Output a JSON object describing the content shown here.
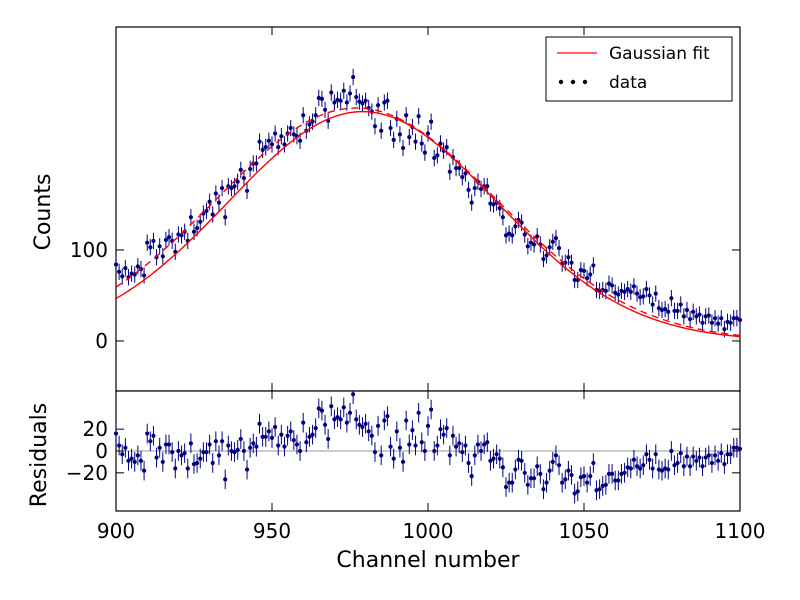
{
  "chart_data": [
    {
      "type": "scatter",
      "xlim": [
        900,
        1100
      ],
      "ylim": [
        -55,
        345
      ],
      "xlabel": "",
      "ylabel": "Counts",
      "y_ticks": [
        0,
        100
      ],
      "y_tick_labels": [
        "0",
        "100"
      ],
      "grid": false,
      "legend": {
        "placement": "top-right",
        "entries": [
          {
            "label": "Gaussian fit",
            "style": "red-line"
          },
          {
            "label": "data",
            "style": "blue-dots"
          }
        ]
      },
      "series": [
        {
          "name": "data",
          "style": "points-with-errorbars",
          "x_start": 900,
          "x_step": 1,
          "y_error": 9,
          "y": [
            84,
            76,
            71,
            80,
            70,
            74,
            73,
            82,
            79,
            72,
            108,
            103,
            110,
            92,
            104,
            93,
            111,
            114,
            110,
            98,
            117,
            116,
            120,
            110,
            136,
            120,
            124,
            131,
            140,
            143,
            153,
            139,
            162,
            152,
            168,
            136,
            170,
            168,
            170,
            175,
            188,
            179,
            165,
            189,
            195,
            195,
            219,
            210,
            213,
            220,
            216,
            228,
            213,
            225,
            216,
            228,
            234,
            227,
            225,
            220,
            248,
            231,
            238,
            241,
            248,
            267,
            266,
            254,
            242,
            273,
            262,
            265,
            264,
            275,
            262,
            272,
            290,
            268,
            263,
            261,
            264,
            256,
            252,
            236,
            259,
            231,
            262,
            264,
            234,
            221,
            244,
            227,
            212,
            248,
            224,
            235,
            219,
            247,
            217,
            207,
            228,
            241,
            201,
            204,
            217,
            209,
            213,
            186,
            202,
            190,
            190,
            180,
            184,
            166,
            152,
            168,
            175,
            167,
            170,
            170,
            151,
            150,
            152,
            146,
            136,
            116,
            118,
            116,
            126,
            133,
            130,
            117,
            104,
            108,
            106,
            115,
            106,
            90,
            94,
            103,
            109,
            113,
            102,
            85,
            86,
            92,
            86,
            67,
            67,
            78,
            77,
            69,
            73,
            83,
            56,
            55,
            56,
            55,
            63,
            61,
            53,
            51,
            55,
            54,
            57,
            54,
            60,
            52,
            48,
            49,
            57,
            50,
            40,
            52,
            36,
            34,
            35,
            32,
            47,
            33,
            33,
            40,
            27,
            34,
            24,
            32,
            27,
            29,
            20,
            27,
            28,
            20,
            25,
            19,
            25,
            13,
            21,
            20,
            25,
            25,
            23
          ]
        },
        {
          "name": "Gaussian fit",
          "style": "solid-red-line",
          "model": "gaussian",
          "amplitude": 252,
          "center": 979,
          "sigma": 43
        },
        {
          "name": "",
          "style": "dashed-red-line",
          "model": "gaussian",
          "amplitude": 256,
          "center": 977,
          "sigma": 45
        }
      ]
    },
    {
      "type": "scatter",
      "xlim": [
        900,
        1100
      ],
      "ylim": [
        -55,
        55
      ],
      "xlabel": "Channel number",
      "ylabel": "Residuals",
      "x_ticks": [
        900,
        950,
        1000,
        1050,
        1100
      ],
      "x_tick_labels": [
        "900",
        "950",
        "1000",
        "1050",
        "1100"
      ],
      "y_ticks": [
        -20,
        0,
        20
      ],
      "y_tick_labels": [
        "−20",
        "0",
        "20"
      ],
      "grid": false,
      "series": [
        {
          "name": "residuals",
          "style": "points-with-errorbars",
          "x_start": 900,
          "x_step": 1,
          "y_error": 9,
          "y": [
            16,
            5,
            -3,
            3,
            -9,
            -7,
            -10,
            -4,
            -9,
            -18,
            16,
            9,
            14,
            -6,
            3,
            -10,
            6,
            6,
            -1,
            -16,
            0,
            -4,
            -2,
            -16,
            7,
            -12,
            -11,
            -7,
            -1,
            -1,
            6,
            -11,
            9,
            -4,
            9,
            -26,
            5,
            0,
            -1,
            1,
            11,
            0,
            -17,
            3,
            7,
            4,
            25,
            13,
            13,
            18,
            12,
            22,
            5,
            15,
            4,
            14,
            18,
            10,
            6,
            0,
            26,
            8,
            13,
            15,
            21,
            39,
            37,
            24,
            11,
            41,
            29,
            31,
            29,
            40,
            26,
            35,
            52,
            29,
            24,
            22,
            25,
            18,
            14,
            -1,
            23,
            -4,
            28,
            32,
            4,
            -7,
            18,
            3,
            -10,
            28,
            6,
            19,
            5,
            35,
            8,
            0,
            23,
            38,
            0,
            5,
            20,
            15,
            21,
            -4,
            14,
            4,
            7,
            -1,
            5,
            -11,
            -23,
            -4,
            6,
            0,
            6,
            8,
            -9,
            -7,
            -3,
            -7,
            -15,
            -33,
            -29,
            -29,
            -17,
            -8,
            -9,
            -20,
            -31,
            -25,
            -25,
            -14,
            -21,
            -35,
            -29,
            -18,
            -10,
            -4,
            -13,
            -29,
            -26,
            -18,
            -22,
            -39,
            -37,
            -24,
            -23,
            -29,
            -23,
            -11,
            -36,
            -35,
            -32,
            -31,
            -21,
            -21,
            -27,
            -27,
            -21,
            -20,
            -15,
            -16,
            -8,
            -14,
            -16,
            -13,
            -3,
            -8,
            -16,
            -3,
            -17,
            -18,
            -16,
            -17,
            0,
            -13,
            -11,
            -2,
            -14,
            -5,
            -14,
            -5,
            -9,
            -6,
            -14,
            -6,
            -4,
            -11,
            -4,
            -9,
            -2,
            -12,
            -3,
            -3,
            3,
            3,
            2
          ]
        }
      ]
    }
  ]
}
